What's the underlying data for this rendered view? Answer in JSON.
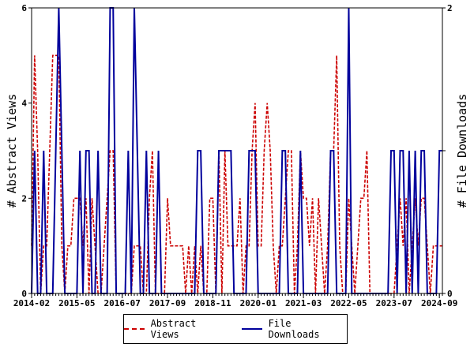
{
  "chart_data": {
    "type": "line",
    "xlabel": "",
    "ylabel_left": "# Abstract Views",
    "ylabel_right": "# File Downloads",
    "ylim_left": [
      0,
      6
    ],
    "ylim_right": [
      0,
      2
    ],
    "left_ticks": [
      "0",
      "2",
      "4",
      "6"
    ],
    "right_ticks": [
      "0",
      "1",
      "2"
    ],
    "x_ticks": [
      "2014-02",
      "2015-05",
      "2016-07",
      "2017-09",
      "2018-11",
      "2020-01",
      "2021-03",
      "2022-05",
      "2023-07",
      "2024-09"
    ],
    "x_start": "2014-02",
    "grid": false,
    "legend_position": "bottom",
    "series": [
      {
        "name": "Abstract Views",
        "axis": "left",
        "color": "#cc0000",
        "style": "dashed",
        "values": [
          1,
          5,
          3,
          0,
          1,
          1,
          3,
          5,
          5,
          5,
          1,
          0,
          1,
          1,
          2,
          2,
          2,
          1,
          2,
          0,
          2,
          1,
          0,
          0,
          1,
          2,
          3,
          3,
          0,
          0,
          0,
          0,
          0,
          0,
          1,
          1,
          1,
          0,
          0,
          2,
          3,
          0,
          0,
          0,
          0,
          2,
          1,
          1,
          1,
          1,
          1,
          0,
          1,
          0,
          1,
          0,
          1,
          0,
          0,
          2,
          2,
          0,
          3,
          0,
          3,
          1,
          1,
          1,
          1,
          2,
          0,
          1,
          1,
          3,
          4,
          1,
          1,
          3,
          4,
          3,
          1,
          0,
          1,
          1,
          2,
          3,
          3,
          0,
          1,
          3,
          2,
          2,
          1,
          2,
          0,
          2,
          1,
          0,
          1,
          3,
          3,
          5,
          1,
          0,
          0,
          2,
          1,
          0,
          1,
          2,
          2,
          3,
          0,
          0,
          0,
          0,
          0,
          0,
          0,
          0,
          0,
          1,
          2,
          1,
          2,
          0,
          1,
          2,
          1,
          2,
          2,
          1,
          0,
          1,
          1,
          1,
          1
        ]
      },
      {
        "name": "File Downloads",
        "axis": "right",
        "color": "#00009c",
        "style": "solid",
        "values": [
          0,
          1,
          0,
          0,
          1,
          0,
          0,
          0,
          1,
          2,
          1,
          0,
          0,
          0,
          0,
          0,
          1,
          0,
          1,
          1,
          0,
          0,
          1,
          0,
          0,
          0,
          2,
          2,
          0,
          0,
          0,
          0,
          1,
          0,
          2,
          1,
          0,
          0,
          1,
          0,
          0,
          0,
          1,
          0,
          0,
          0,
          0,
          0,
          0,
          0,
          0,
          0,
          0,
          0,
          0,
          1,
          1,
          0,
          0,
          0,
          0,
          0,
          1,
          1,
          1,
          1,
          1,
          0,
          0,
          0,
          0,
          0,
          1,
          1,
          1,
          0,
          0,
          0,
          0,
          0,
          0,
          0,
          0,
          1,
          1,
          0,
          0,
          0,
          0,
          1,
          0,
          0,
          0,
          0,
          0,
          0,
          0,
          0,
          0,
          1,
          1,
          0,
          0,
          0,
          0,
          2,
          0,
          0,
          0,
          0,
          0,
          0,
          0,
          0,
          0,
          0,
          0,
          0,
          0,
          1,
          1,
          0,
          1,
          1,
          0,
          1,
          0,
          1,
          0,
          1,
          1,
          0,
          0,
          0,
          0,
          1,
          1
        ]
      }
    ]
  }
}
